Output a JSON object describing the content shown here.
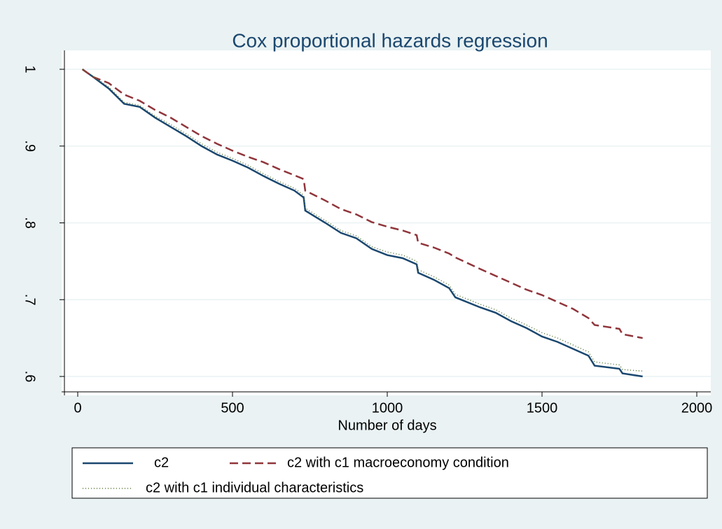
{
  "chart_data": {
    "type": "line",
    "title": "Cox proportional hazards regression",
    "x_label": "Number of days",
    "x": [
      15,
      50,
      100,
      150,
      200,
      250,
      300,
      350,
      400,
      450,
      500,
      550,
      600,
      650,
      700,
      730,
      735,
      800,
      850,
      900,
      950,
      1000,
      1050,
      1095,
      1100,
      1150,
      1200,
      1220,
      1300,
      1350,
      1400,
      1450,
      1500,
      1550,
      1600,
      1650,
      1670,
      1750,
      1760,
      1825
    ],
    "series": [
      {
        "name": "c2",
        "color": "#1a476f",
        "dash": "solid",
        "values": [
          1.0,
          0.99,
          0.975,
          0.955,
          0.951,
          0.937,
          0.925,
          0.913,
          0.9,
          0.889,
          0.881,
          0.872,
          0.861,
          0.851,
          0.842,
          0.833,
          0.816,
          0.8,
          0.787,
          0.78,
          0.766,
          0.758,
          0.754,
          0.746,
          0.735,
          0.726,
          0.715,
          0.703,
          0.69,
          0.683,
          0.672,
          0.663,
          0.652,
          0.645,
          0.636,
          0.627,
          0.614,
          0.61,
          0.604,
          0.6
        ]
      },
      {
        "name": "c2 with c1 macroeconomy condition",
        "color": "#90353b",
        "dash": "dashed",
        "values": [
          1.0,
          0.99,
          0.982,
          0.967,
          0.959,
          0.947,
          0.937,
          0.925,
          0.913,
          0.903,
          0.894,
          0.886,
          0.879,
          0.87,
          0.862,
          0.857,
          0.842,
          0.829,
          0.818,
          0.811,
          0.801,
          0.795,
          0.79,
          0.784,
          0.774,
          0.768,
          0.76,
          0.755,
          0.74,
          0.731,
          0.722,
          0.713,
          0.706,
          0.697,
          0.688,
          0.676,
          0.667,
          0.662,
          0.655,
          0.65
        ]
      },
      {
        "name": "c2 with c1 individual characteristics",
        "color": "#55752f",
        "dash": "dotted",
        "values": [
          1.0,
          0.991,
          0.977,
          0.957,
          0.953,
          0.939,
          0.928,
          0.916,
          0.903,
          0.892,
          0.884,
          0.875,
          0.864,
          0.854,
          0.845,
          0.836,
          0.819,
          0.803,
          0.79,
          0.783,
          0.769,
          0.762,
          0.758,
          0.75,
          0.739,
          0.73,
          0.719,
          0.707,
          0.694,
          0.687,
          0.676,
          0.667,
          0.657,
          0.65,
          0.641,
          0.632,
          0.619,
          0.615,
          0.609,
          0.607
        ]
      }
    ],
    "xlim": [
      0,
      2000
    ],
    "xticks": [
      0,
      500,
      1000,
      1500,
      2000
    ],
    "ylim": [
      0.6,
      1
    ],
    "yticks": [
      {
        "value": 0.6,
        "label": ".6"
      },
      {
        "value": 0.7,
        "label": ".7"
      },
      {
        "value": 0.8,
        "label": ".8"
      },
      {
        "value": 0.9,
        "label": ".9"
      },
      1
    ],
    "grid": true,
    "legend": "bottom"
  }
}
